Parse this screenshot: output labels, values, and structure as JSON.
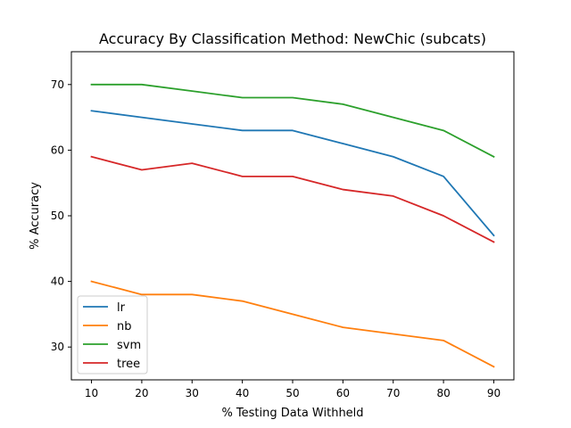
{
  "chart_data": {
    "type": "line",
    "title": "Accuracy By Classification Method: NewChic (subcats)",
    "xlabel": "% Testing Data Withheld",
    "ylabel": "% Accuracy",
    "x": [
      10,
      20,
      30,
      40,
      50,
      60,
      70,
      80,
      90
    ],
    "xticks": [
      "10",
      "20",
      "30",
      "40",
      "50",
      "60",
      "70",
      "80",
      "90"
    ],
    "yticks": [
      "30",
      "40",
      "50",
      "60",
      "70"
    ],
    "xlim": [
      6,
      94
    ],
    "ylim": [
      25,
      75
    ],
    "grid": false,
    "legend_position": "lower-left",
    "series": [
      {
        "name": "lr",
        "color": "#1f77b4",
        "values": [
          66,
          65,
          64,
          63,
          63,
          61,
          59,
          56,
          47
        ]
      },
      {
        "name": "nb",
        "color": "#ff7f0e",
        "values": [
          40,
          38,
          38,
          37,
          35,
          33,
          32,
          31,
          27
        ]
      },
      {
        "name": "svm",
        "color": "#2ca02c",
        "values": [
          70,
          70,
          69,
          68,
          68,
          67,
          65,
          63,
          59
        ]
      },
      {
        "name": "tree",
        "color": "#d62728",
        "values": [
          59,
          57,
          58,
          56,
          56,
          54,
          53,
          50,
          46
        ]
      }
    ]
  }
}
